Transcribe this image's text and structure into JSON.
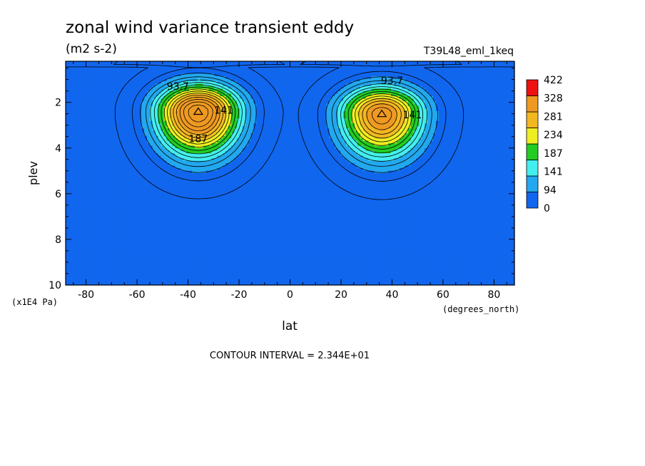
{
  "chart_data": {
    "type": "contour",
    "title": "zonal wind variance transient eddy",
    "subtitle": "(m2 s-2)",
    "dataset": "T39L48_eml_1keq",
    "xlabel": "lat",
    "x_units": "(degrees_north)",
    "ylabel": "plev",
    "y_units": "(x1E4 Pa)",
    "xlim": [
      -88,
      88
    ],
    "ylim": [
      10,
      0.2
    ],
    "x_ticks": [
      -80,
      -60,
      -40,
      -20,
      0,
      20,
      40,
      60,
      80
    ],
    "y_ticks": [
      2,
      4,
      6,
      8,
      10
    ],
    "contour_interval_text": "CONTOUR INTERVAL = 2.344E+01",
    "colorbar": {
      "levels": [
        0,
        94,
        141,
        187,
        234,
        281,
        328,
        422
      ],
      "colors": [
        "#1166ee",
        "#22a8ee",
        "#44eeee",
        "#22cc22",
        "#eeee22",
        "#f2b822",
        "#ee9922",
        "#ee1111"
      ]
    },
    "contour_labels": [
      {
        "text": "93.7",
        "lat": -44,
        "plev": 1.45
      },
      {
        "text": "141",
        "lat": -26,
        "plev": 2.5
      },
      {
        "text": "187",
        "lat": -36,
        "plev": 3.75
      },
      {
        "text": "93.7",
        "lat": 40,
        "plev": 1.2
      },
      {
        "text": "141",
        "lat": 48,
        "plev": 2.7
      }
    ],
    "maxima": [
      {
        "lat": -36,
        "plev": 2.4,
        "value": 380
      },
      {
        "lat": 36,
        "plev": 2.5,
        "value": 330
      }
    ]
  }
}
